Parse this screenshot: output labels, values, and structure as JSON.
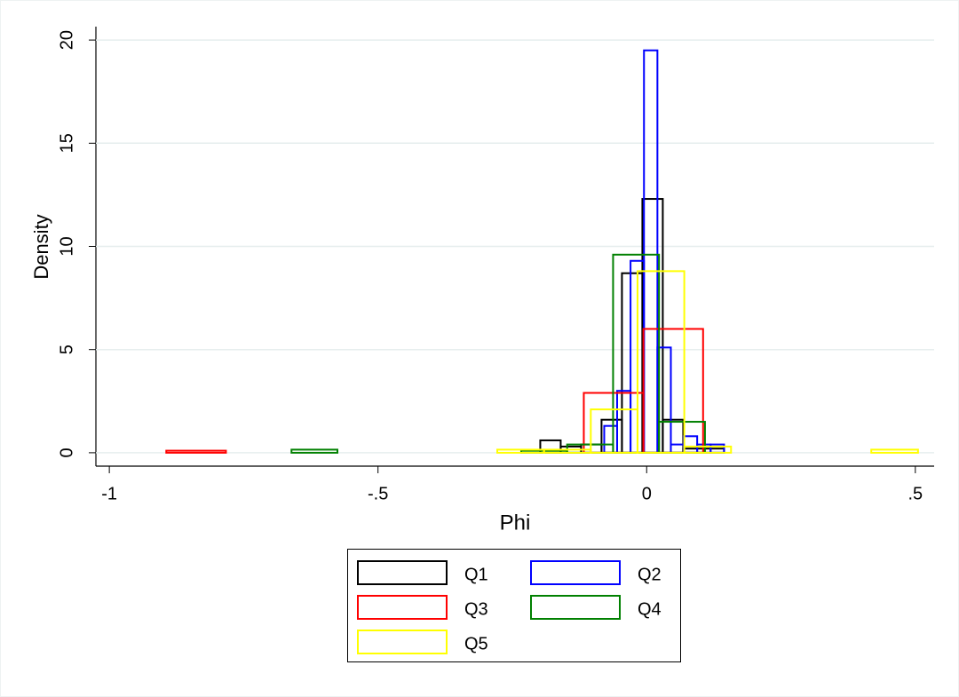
{
  "chart_data": {
    "type": "histogram",
    "xlabel": "Phi",
    "ylabel": "Density",
    "xlim": [
      -1.025,
      0.535
    ],
    "ylim": [
      -0.65,
      20.65
    ],
    "xticks": [
      -1,
      {
        "value": -0.5,
        "label": "-.5"
      },
      0,
      {
        "value": 0.5,
        "label": ".5"
      }
    ],
    "yticks": [
      0,
      5,
      10,
      15,
      20
    ],
    "grid": true,
    "legend": "bottom",
    "series": [
      {
        "name": "Q1",
        "color": "#000000",
        "bins": [
          -0.198,
          -0.16,
          -0.122,
          -0.084,
          -0.046,
          -0.008,
          0.03,
          0.068,
          0.106,
          0.144
        ],
        "values": [
          0.6,
          0.3,
          0.4,
          1.6,
          8.7,
          12.3,
          1.6,
          0.2,
          0.2
        ]
      },
      {
        "name": "Q2",
        "color": "#0000ff",
        "bins": [
          -0.079,
          -0.055,
          -0.03,
          -0.005,
          0.02,
          0.045,
          0.069,
          0.094,
          0.119,
          0.144
        ],
        "values": [
          1.3,
          3.0,
          9.3,
          19.5,
          5.1,
          0.4,
          0.8,
          0.4,
          0.4
        ]
      },
      {
        "name": "Q3",
        "color": "#ff0000",
        "bins": [
          -0.894,
          -0.783,
          -0.672,
          -0.561,
          -0.45,
          -0.339,
          -0.228,
          -0.117,
          -0.006,
          0.105
        ],
        "values": [
          0.1,
          0,
          0,
          0,
          0,
          0,
          0,
          2.9,
          6.0
        ]
      },
      {
        "name": "Q4",
        "color": "#008000",
        "bins": [
          -0.661,
          -0.5755,
          -0.49,
          -0.4045,
          -0.319,
          -0.2335,
          -0.148,
          -0.0625,
          0.023,
          0.1085
        ],
        "values": [
          0.15,
          0,
          0,
          0,
          0,
          0.1,
          0.4,
          9.6,
          1.5
        ]
      },
      {
        "name": "Q5",
        "color": "#ffff00",
        "bins": [
          -0.278,
          -0.191,
          -0.104,
          -0.017,
          0.07,
          0.157,
          0.244,
          0.331,
          0.418,
          0.505
        ],
        "values": [
          0.15,
          0.15,
          2.1,
          8.8,
          0.3,
          0,
          0,
          0,
          0.15
        ]
      }
    ]
  }
}
